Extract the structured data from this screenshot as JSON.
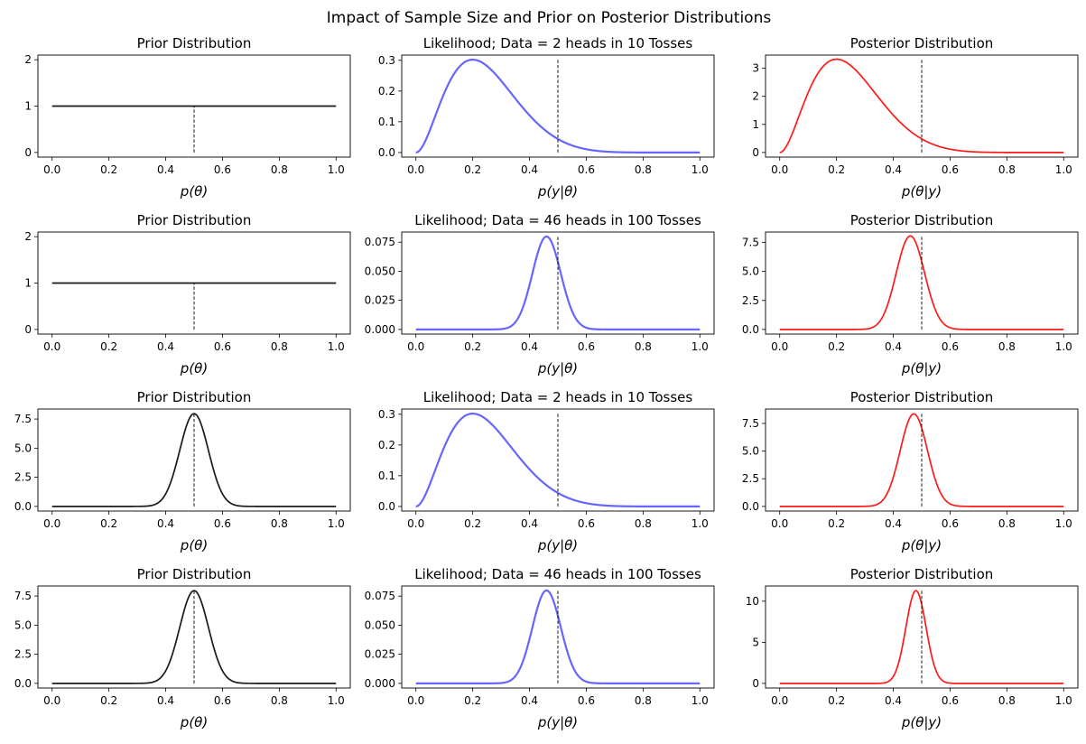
{
  "figure_title": "Impact of Sample Size and Prior on Posterior Distributions",
  "colors": {
    "prior": "#1a1a1a",
    "likelihood": "#6666ff",
    "posterior": "#ff1a1a",
    "reference": "#000000"
  },
  "chart_data": [
    {
      "type": "line",
      "title": "Prior Distribution",
      "xlabel": "p(θ)",
      "xlim": [
        -0.05,
        1.05
      ],
      "ylim": [
        -0.1,
        2.1
      ],
      "xticks": [
        "0.0",
        "0.2",
        "0.4",
        "0.6",
        "0.8",
        "1.0"
      ],
      "yticks": [
        0,
        1,
        2
      ],
      "ytick_labels": [
        "0",
        "1",
        "2"
      ],
      "series": {
        "kind": "beta",
        "a": 1,
        "b": 1,
        "color": "prior"
      },
      "vline": {
        "x": 0.5,
        "style": "dashed"
      }
    },
    {
      "type": "line",
      "title": "Likelihood; Data = 2 heads in 10 Tosses",
      "xlabel": "p(y|θ)",
      "xlim": [
        -0.05,
        1.05
      ],
      "ylim": [
        -0.015,
        0.317
      ],
      "xticks": [
        "0.0",
        "0.2",
        "0.4",
        "0.6",
        "0.8",
        "1.0"
      ],
      "yticks": [
        0,
        0.1,
        0.2,
        0.3
      ],
      "ytick_labels": [
        "0.0",
        "0.1",
        "0.2",
        "0.3"
      ],
      "series": {
        "kind": "binomial",
        "k": 2,
        "n": 10,
        "color": "likelihood"
      },
      "vline": {
        "x": 0.5,
        "style": "dashed"
      }
    },
    {
      "type": "line",
      "title": "Posterior Distribution",
      "xlabel": "p(θ|y)",
      "xlim": [
        -0.05,
        1.05
      ],
      "ylim": [
        -0.165,
        3.47
      ],
      "xticks": [
        "0.0",
        "0.2",
        "0.4",
        "0.6",
        "0.8",
        "1.0"
      ],
      "yticks": [
        0,
        1,
        2,
        3
      ],
      "ytick_labels": [
        "0",
        "1",
        "2",
        "3"
      ],
      "series": {
        "kind": "beta",
        "a": 3,
        "b": 9,
        "color": "posterior"
      },
      "vline": {
        "x": 0.5,
        "style": "dashed"
      }
    },
    {
      "type": "line",
      "title": "Prior Distribution",
      "xlabel": "p(θ)",
      "xlim": [
        -0.05,
        1.05
      ],
      "ylim": [
        -0.1,
        2.1
      ],
      "xticks": [
        "0.0",
        "0.2",
        "0.4",
        "0.6",
        "0.8",
        "1.0"
      ],
      "yticks": [
        0,
        1,
        2
      ],
      "ytick_labels": [
        "0",
        "1",
        "2"
      ],
      "series": {
        "kind": "beta",
        "a": 1,
        "b": 1,
        "color": "prior"
      },
      "vline": {
        "x": 0.5,
        "style": "dashed"
      }
    },
    {
      "type": "line",
      "title": "Likelihood; Data = 46 heads in 100 Tosses",
      "xlabel": "p(y|θ)",
      "xlim": [
        -0.05,
        1.05
      ],
      "ylim": [
        -0.004,
        0.0837
      ],
      "xticks": [
        "0.0",
        "0.2",
        "0.4",
        "0.6",
        "0.8",
        "1.0"
      ],
      "yticks": [
        0,
        0.025,
        0.05,
        0.075
      ],
      "ytick_labels": [
        "0.000",
        "0.025",
        "0.050",
        "0.075"
      ],
      "series": {
        "kind": "binomial",
        "k": 46,
        "n": 100,
        "color": "likelihood"
      },
      "vline": {
        "x": 0.5,
        "style": "dashed"
      }
    },
    {
      "type": "line",
      "title": "Posterior Distribution",
      "xlabel": "p(θ|y)",
      "xlim": [
        -0.05,
        1.05
      ],
      "ylim": [
        -0.4,
        8.4
      ],
      "xticks": [
        "0.0",
        "0.2",
        "0.4",
        "0.6",
        "0.8",
        "1.0"
      ],
      "yticks": [
        0,
        2.5,
        5,
        7.5
      ],
      "ytick_labels": [
        "0.0",
        "2.5",
        "5.0",
        "7.5"
      ],
      "series": {
        "kind": "beta",
        "a": 47,
        "b": 55,
        "color": "posterior"
      },
      "vline": {
        "x": 0.5,
        "style": "dashed"
      }
    },
    {
      "type": "line",
      "title": "Prior Distribution",
      "xlabel": "p(θ)",
      "xlim": [
        -0.05,
        1.05
      ],
      "ylim": [
        -0.4,
        8.36
      ],
      "xticks": [
        "0.0",
        "0.2",
        "0.4",
        "0.6",
        "0.8",
        "1.0"
      ],
      "yticks": [
        0,
        2.5,
        5,
        7.5
      ],
      "ytick_labels": [
        "0.0",
        "2.5",
        "5.0",
        "7.5"
      ],
      "series": {
        "kind": "beta",
        "a": 50,
        "b": 50,
        "color": "prior"
      },
      "vline": {
        "x": 0.5,
        "style": "dashed"
      }
    },
    {
      "type": "line",
      "title": "Likelihood; Data = 2 heads in 10 Tosses",
      "xlabel": "p(y|θ)",
      "xlim": [
        -0.05,
        1.05
      ],
      "ylim": [
        -0.015,
        0.317
      ],
      "xticks": [
        "0.0",
        "0.2",
        "0.4",
        "0.6",
        "0.8",
        "1.0"
      ],
      "yticks": [
        0,
        0.1,
        0.2,
        0.3
      ],
      "ytick_labels": [
        "0.0",
        "0.1",
        "0.2",
        "0.3"
      ],
      "series": {
        "kind": "binomial",
        "k": 2,
        "n": 10,
        "color": "likelihood"
      },
      "vline": {
        "x": 0.5,
        "style": "dashed"
      }
    },
    {
      "type": "line",
      "title": "Posterior Distribution",
      "xlabel": "p(θ|y)",
      "xlim": [
        -0.05,
        1.05
      ],
      "ylim": [
        -0.42,
        8.8
      ],
      "xticks": [
        "0.0",
        "0.2",
        "0.4",
        "0.6",
        "0.8",
        "1.0"
      ],
      "yticks": [
        0,
        2.5,
        5,
        7.5
      ],
      "ytick_labels": [
        "0.0",
        "2.5",
        "5.0",
        "7.5"
      ],
      "series": {
        "kind": "beta",
        "a": 52,
        "b": 58,
        "color": "posterior"
      },
      "vline": {
        "x": 0.5,
        "style": "dashed"
      }
    },
    {
      "type": "line",
      "title": "Prior Distribution",
      "xlabel": "p(θ)",
      "xlim": [
        -0.05,
        1.05
      ],
      "ylim": [
        -0.4,
        8.36
      ],
      "xticks": [
        "0.0",
        "0.2",
        "0.4",
        "0.6",
        "0.8",
        "1.0"
      ],
      "yticks": [
        0,
        2.5,
        5,
        7.5
      ],
      "ytick_labels": [
        "0.0",
        "2.5",
        "5.0",
        "7.5"
      ],
      "series": {
        "kind": "beta",
        "a": 50,
        "b": 50,
        "color": "prior"
      },
      "vline": {
        "x": 0.5,
        "style": "dashed"
      }
    },
    {
      "type": "line",
      "title": "Likelihood; Data = 46 heads in 100 Tosses",
      "xlabel": "p(y|θ)",
      "xlim": [
        -0.05,
        1.05
      ],
      "ylim": [
        -0.004,
        0.0837
      ],
      "xticks": [
        "0.0",
        "0.2",
        "0.4",
        "0.6",
        "0.8",
        "1.0"
      ],
      "yticks": [
        0,
        0.025,
        0.05,
        0.075
      ],
      "ytick_labels": [
        "0.000",
        "0.025",
        "0.050",
        "0.075"
      ],
      "series": {
        "kind": "binomial",
        "k": 46,
        "n": 100,
        "color": "likelihood"
      },
      "vline": {
        "x": 0.5,
        "style": "dashed"
      }
    },
    {
      "type": "line",
      "title": "Posterior Distribution",
      "xlabel": "p(θ|y)",
      "xlim": [
        -0.05,
        1.05
      ],
      "ylim": [
        -0.56,
        11.85
      ],
      "xticks": [
        "0.0",
        "0.2",
        "0.4",
        "0.6",
        "0.8",
        "1.0"
      ],
      "yticks": [
        0,
        5,
        10
      ],
      "ytick_labels": [
        "0",
        "5",
        "10"
      ],
      "series": {
        "kind": "beta",
        "a": 96,
        "b": 104,
        "color": "posterior"
      },
      "vline": {
        "x": 0.5,
        "style": "dashed"
      }
    }
  ]
}
